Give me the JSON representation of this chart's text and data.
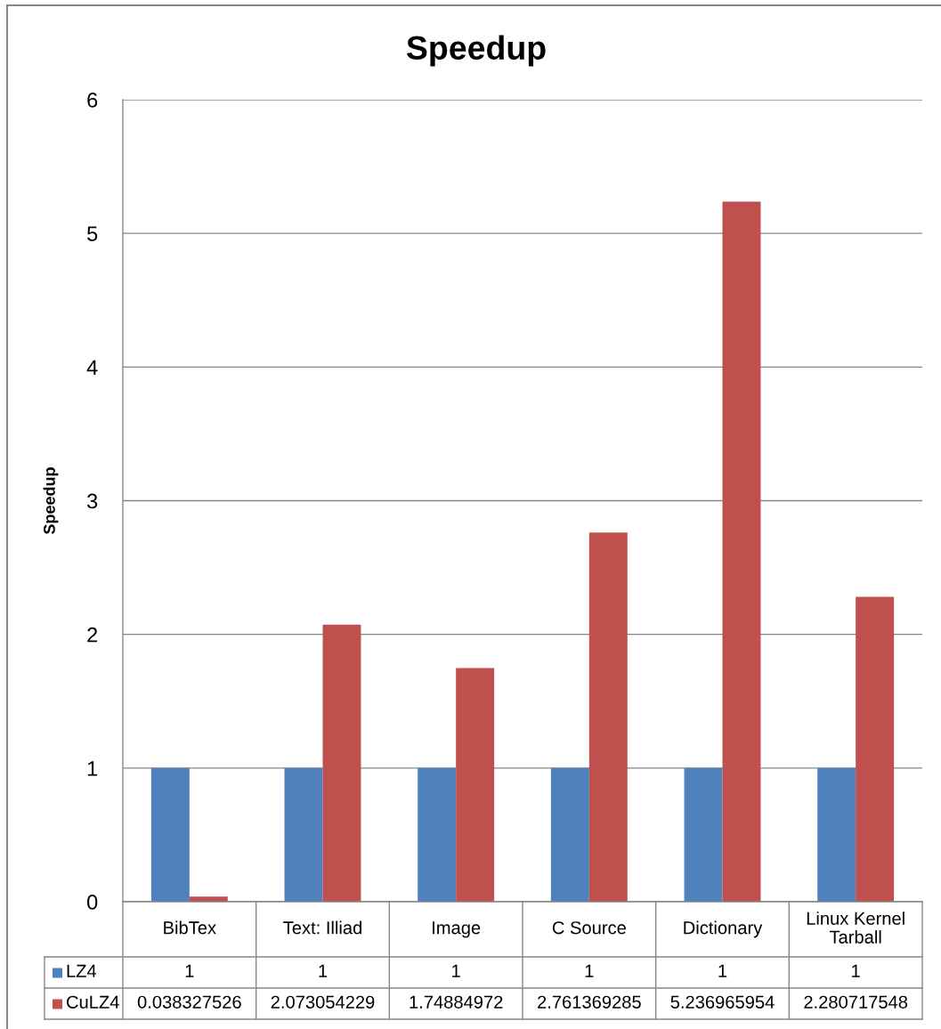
{
  "chart_data": {
    "type": "bar",
    "title": "Speedup",
    "ylabel": "Speedup",
    "categories": [
      "BibTex",
      "Text: Illiad",
      "Image",
      "C Source",
      "Dictionary",
      "Linux Kernel\nTarball"
    ],
    "series": [
      {
        "name": "LZ4",
        "color": "#4f81bd",
        "values": [
          1,
          1,
          1,
          1,
          1,
          1
        ]
      },
      {
        "name": "CuLZ4",
        "color": "#c0504d",
        "values": [
          0.038327526,
          2.073054229,
          1.74884972,
          2.761369285,
          5.236965954,
          2.280717548
        ]
      }
    ],
    "ylim": [
      0,
      6
    ],
    "yticks": [
      0,
      1,
      2,
      3,
      4,
      5,
      6
    ],
    "grid": "y",
    "legend": "bottom left",
    "data_labels": true
  }
}
